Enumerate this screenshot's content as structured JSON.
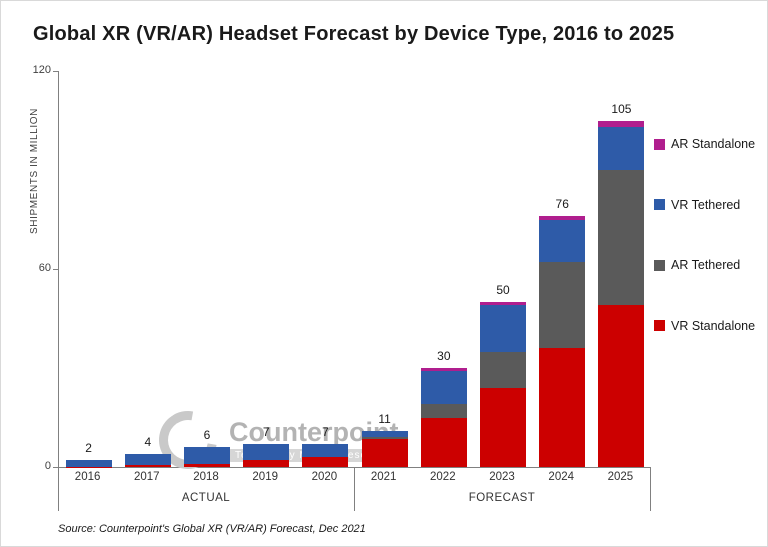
{
  "title": "Global XR (VR/AR) Headset Forecast by Device Type, 2016 to 2025",
  "source": "Source: Counterpoint's Global XR (VR/AR) Forecast, Dec 2021",
  "watermark": {
    "name": "Counterpoint",
    "subtitle": "Technology Market Research"
  },
  "chart_data": {
    "type": "bar",
    "stacked": true,
    "title": "Global XR (VR/AR) Headset Forecast by Device Type, 2016 to 2025",
    "xlabel": "",
    "ylabel": "SHIPMENTS IN MILLION",
    "ylim": [
      0,
      120
    ],
    "y_ticks": [
      0,
      60,
      120
    ],
    "grid": false,
    "legend_position": "right",
    "categories": [
      "2016",
      "2017",
      "2018",
      "2019",
      "2020",
      "2021",
      "2022",
      "2023",
      "2024",
      "2025"
    ],
    "group_labels": [
      {
        "label": "ACTUAL",
        "span": [
          0,
          4
        ]
      },
      {
        "label": "FORECAST",
        "span": [
          5,
          9
        ]
      }
    ],
    "totals": [
      2,
      4,
      6,
      7,
      7,
      11,
      30,
      50,
      76,
      105
    ],
    "series": [
      {
        "name": "VR Standalone",
        "color": "#CC0000",
        "values": [
          0.1,
          0.5,
          1,
          2,
          3,
          8.5,
          15,
          24,
          36,
          49
        ]
      },
      {
        "name": "AR Tethered",
        "color": "#5A5A5A",
        "values": [
          0,
          0,
          0,
          0,
          0,
          0.5,
          4,
          11,
          26,
          41
        ]
      },
      {
        "name": "VR Tethered",
        "color": "#2E5BA8",
        "values": [
          1.9,
          3.5,
          5,
          5,
          4,
          2,
          10,
          14,
          13,
          13
        ]
      },
      {
        "name": "AR Standalone",
        "color": "#B01E8E",
        "values": [
          0,
          0,
          0,
          0,
          0,
          0,
          1,
          1,
          1,
          2
        ]
      }
    ],
    "legend_order": [
      "AR Standalone",
      "VR Tethered",
      "AR Tethered",
      "VR Standalone"
    ]
  }
}
